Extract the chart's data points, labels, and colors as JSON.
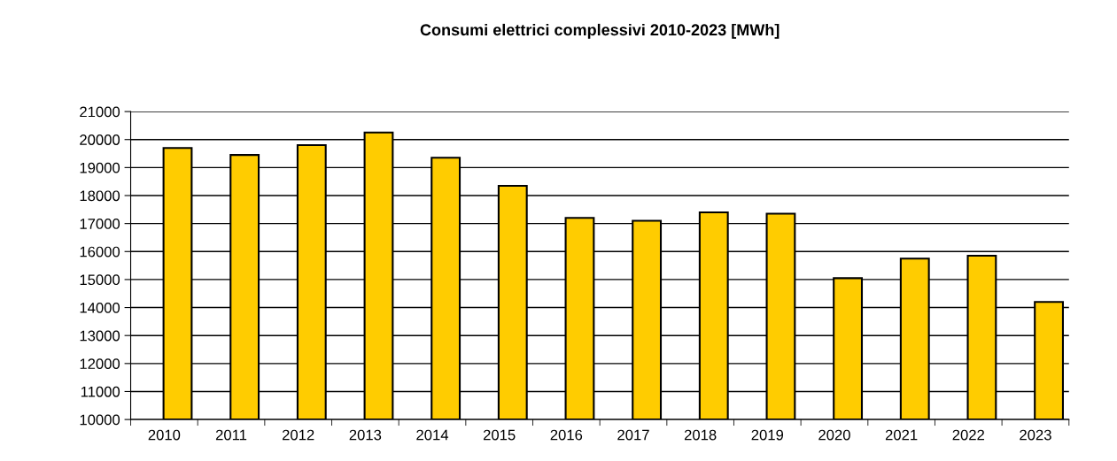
{
  "chart_data": {
    "type": "bar",
    "title": "Consumi elettrici complessivi 2010-2023 [MWh]",
    "categories": [
      "2010",
      "2011",
      "2012",
      "2013",
      "2014",
      "2015",
      "2016",
      "2017",
      "2018",
      "2019",
      "2020",
      "2021",
      "2022",
      "2023"
    ],
    "series": [
      {
        "color": "#ffcc00",
        "values": [
          19700,
          19450,
          19800,
          20250,
          19350,
          18350,
          17200,
          17100,
          17400,
          17350,
          15050,
          15750,
          15850,
          14200
        ]
      }
    ],
    "ylim": [
      10000,
      21000
    ],
    "yticks": [
      10000,
      11000,
      12000,
      13000,
      14000,
      15000,
      16000,
      17000,
      18000,
      19000,
      20000,
      21000
    ],
    "grid": "y",
    "legend": false
  }
}
